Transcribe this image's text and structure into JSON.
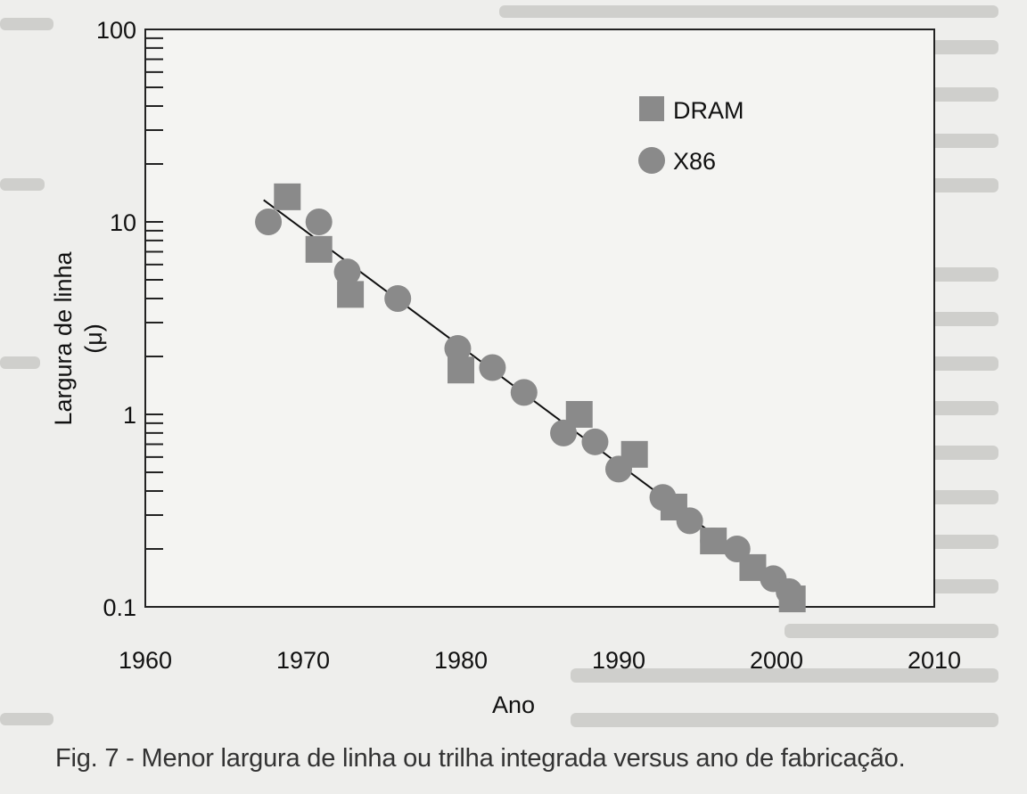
{
  "chart_data": {
    "type": "scatter",
    "title": "",
    "xlabel": "Ano",
    "ylabel": "Largura de linha",
    "ylabel_unit": "(μ)",
    "xlim": [
      1960,
      2010
    ],
    "ylim": [
      0.1,
      100
    ],
    "yscale": "log",
    "grid": false,
    "legend_position": "top-right",
    "x_ticks": [
      "1960",
      "1970",
      "1980",
      "1990",
      "2000",
      "2010"
    ],
    "y_ticks": [
      "0.1",
      "1",
      "10",
      "100"
    ],
    "series": [
      {
        "name": "DRAM",
        "marker": "square",
        "color": "#8a8a8a",
        "points": [
          [
            1969,
            13.5
          ],
          [
            1971,
            7.2
          ],
          [
            1973,
            4.2
          ],
          [
            1980,
            1.7
          ],
          [
            1987.5,
            1.0
          ],
          [
            1991,
            0.62
          ],
          [
            1993.5,
            0.33
          ],
          [
            1996,
            0.22
          ],
          [
            1998.5,
            0.16
          ],
          [
            2001,
            0.11
          ]
        ]
      },
      {
        "name": "X86",
        "marker": "circle",
        "color": "#8a8a8a",
        "points": [
          [
            1967.8,
            10
          ],
          [
            1971,
            10
          ],
          [
            1972.8,
            5.5
          ],
          [
            1976,
            4
          ],
          [
            1979.8,
            2.2
          ],
          [
            1982,
            1.75
          ],
          [
            1984,
            1.3
          ],
          [
            1986.5,
            0.8
          ],
          [
            1988.5,
            0.72
          ],
          [
            1990,
            0.52
          ],
          [
            1992.8,
            0.37
          ],
          [
            1994.5,
            0.28
          ],
          [
            1996,
            0.22
          ],
          [
            1997.5,
            0.2
          ],
          [
            1999.8,
            0.14
          ],
          [
            2000.8,
            0.12
          ]
        ]
      }
    ],
    "trend_line": {
      "from": [
        1967.5,
        13
      ],
      "to": [
        2001.5,
        0.11
      ]
    }
  },
  "caption": "Fig. 7 - Menor largura de linha ou trilha integrada versus ano de  fabricação."
}
